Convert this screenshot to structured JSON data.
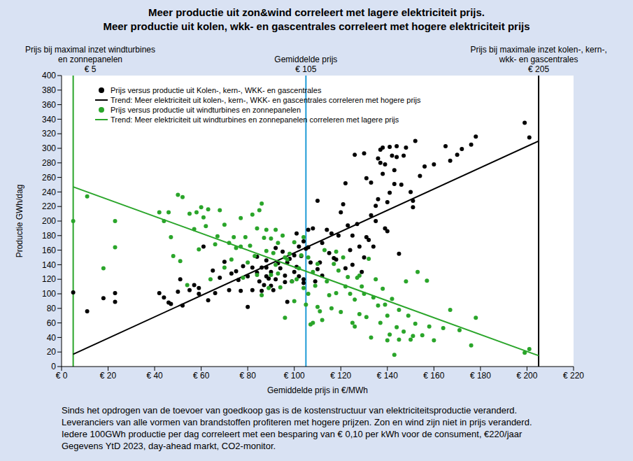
{
  "chart_data": {
    "type": "scatter",
    "title": "Meer productie uit zon&wind correleert met lagere elektriciteit prijs.\nMeer productie uit kolen, wkk- en gascentrales correleert met hogere elektriciteit prijs",
    "x_label": "Gemiddelde prijs  in €/MWh",
    "y_label": "Productie GWh/dag",
    "xlim": [
      0,
      220
    ],
    "xticks": [
      {
        "value": 0,
        "label": "€ 0"
      },
      {
        "value": 20,
        "label": "€ 20"
      },
      {
        "value": 40,
        "label": "€ 40"
      },
      {
        "value": 60,
        "label": "€ 60"
      },
      {
        "value": 80,
        "label": "€ 80"
      },
      {
        "value": 100,
        "label": "€ 100"
      },
      {
        "value": 120,
        "label": "€ 120"
      },
      {
        "value": 140,
        "label": "€ 140"
      },
      {
        "value": 160,
        "label": "€ 160"
      },
      {
        "value": 180,
        "label": "€ 180"
      },
      {
        "value": 200,
        "label": "€ 200"
      },
      {
        "value": 220,
        "label": "€ 220"
      }
    ],
    "ylim": [
      0,
      400
    ],
    "yticks": [
      0,
      20,
      40,
      60,
      80,
      100,
      120,
      140,
      160,
      180,
      200,
      220,
      240,
      260,
      280,
      300,
      320,
      340,
      360,
      380,
      400
    ],
    "grid": false,
    "legend": "upper left",
    "reference_lines": [
      {
        "x": 5,
        "color": "#2aa52a",
        "label": "Prijs bij maximal inzet windturbines\nen zonnepanelen",
        "value_label": "€ 5"
      },
      {
        "x": 105,
        "color": "#1f9ad6",
        "label": "Gemiddelde prijs",
        "value_label": "€ 105"
      },
      {
        "x": 205,
        "color": "#000000",
        "label": "Prijs bij maximale inzet kolen-, kern-,\nwkk- en gascentrales",
        "value_label": "€ 205"
      }
    ],
    "series": [
      {
        "name": "Prijs versus productie uit Kolen-, kern-, WKK- en gascentrales",
        "color": "#000000",
        "type": "scatter",
        "marker": "circle",
        "x": [
          5,
          11,
          18,
          23,
          23,
          42,
          44,
          46,
          47,
          50,
          51,
          52,
          55,
          57,
          59,
          59,
          61,
          63,
          65,
          66,
          68,
          70,
          72,
          73,
          75,
          76,
          77,
          78,
          80,
          80,
          82,
          82,
          84,
          84,
          85,
          86,
          86,
          87,
          88,
          88,
          88,
          89,
          90,
          90,
          91,
          92,
          92,
          93,
          94,
          95,
          96,
          96,
          97,
          97,
          98,
          99,
          100,
          100,
          101,
          101,
          102,
          102,
          103,
          104,
          104,
          104,
          105,
          106,
          106,
          107,
          108,
          109,
          110,
          110,
          111,
          112,
          112,
          114,
          115,
          116,
          117,
          118,
          119,
          120,
          121,
          122,
          122,
          123,
          124,
          125,
          125,
          126,
          127,
          128,
          129,
          130,
          130,
          131,
          131,
          132,
          133,
          133,
          134,
          135,
          135,
          136,
          136,
          137,
          137,
          138,
          138,
          139,
          139,
          140,
          140,
          141,
          141,
          142,
          143,
          143,
          144,
          144,
          145,
          146,
          147,
          148,
          150,
          151,
          151,
          152,
          154,
          156,
          160,
          165,
          167,
          170,
          172,
          176,
          178,
          199,
          201
        ],
        "values": [
          102,
          76,
          94,
          101,
          89,
          101,
          95,
          88,
          86,
          103,
          120,
          84,
          105,
          112,
          100,
          108,
          165,
          91,
          132,
          101,
          122,
          144,
          105,
          128,
          131,
          119,
          104,
          138,
          82,
          124,
          136,
          105,
          129,
          151,
          117,
          136,
          104,
          112,
          124,
          136,
          146,
          121,
          130,
          111,
          105,
          163,
          120,
          142,
          135,
          158,
          116,
          125,
          143,
          89,
          148,
          117,
          130,
          153,
          183,
          137,
          124,
          165,
          152,
          120,
          172,
          115,
          162,
          188,
          164,
          143,
          190,
          117,
          228,
          134,
          143,
          170,
          125,
          188,
          156,
          183,
          149,
          147,
          180,
          212,
          223,
          252,
          135,
          194,
          160,
          180,
          140,
          291,
          196,
          165,
          130,
          293,
          150,
          178,
          259,
          174,
          208,
          253,
          165,
          221,
          200,
          230,
          286,
          298,
          280,
          301,
          265,
          278,
          190,
          226,
          186,
          302,
          239,
          290,
          251,
          270,
          288,
          303,
          155,
          250,
          290,
          301,
          240,
          228,
          219,
          310,
          262,
          275,
          278,
          303,
          283,
          291,
          299,
          305,
          316,
          335,
          315
        ]
      },
      {
        "name": "Trend: Meer elektriciteit uit kolen-, kern-, WKK- en gascentrales correleren met hogere prijs",
        "color": "#000000",
        "type": "line",
        "line_style": "solid",
        "x": [
          5,
          205
        ],
        "values": [
          17,
          310
        ]
      },
      {
        "name": "Prijs versus productie uit windturbines en zonnepanelen",
        "color": "#2aa52a",
        "type": "scatter",
        "marker": "circle",
        "x": [
          5,
          11,
          18,
          23,
          23,
          42,
          44,
          46,
          47,
          48,
          50,
          51,
          52,
          54,
          55,
          57,
          58,
          59,
          60,
          61,
          62,
          63,
          64,
          66,
          67,
          68,
          70,
          70,
          72,
          73,
          74,
          75,
          77,
          77,
          78,
          79,
          80,
          81,
          82,
          83,
          84,
          84,
          85,
          86,
          86,
          87,
          88,
          88,
          89,
          90,
          90,
          91,
          92,
          92,
          93,
          93,
          94,
          95,
          96,
          96,
          97,
          98,
          99,
          100,
          100,
          101,
          102,
          103,
          104,
          104,
          105,
          106,
          106,
          107,
          108,
          108,
          109,
          110,
          110,
          111,
          112,
          113,
          114,
          115,
          116,
          117,
          118,
          118,
          119,
          120,
          121,
          122,
          123,
          124,
          125,
          126,
          126,
          127,
          128,
          128,
          129,
          130,
          131,
          132,
          133,
          134,
          135,
          136,
          137,
          138,
          139,
          140,
          140,
          141,
          142,
          143,
          144,
          145,
          145,
          147,
          148,
          149,
          150,
          151,
          152,
          153,
          155,
          157,
          158,
          160,
          164,
          167,
          171,
          176,
          178,
          199,
          201
        ],
        "values": [
          200,
          234,
          135,
          200,
          164,
          212,
          200,
          212,
          178,
          152,
          236,
          145,
          233,
          112,
          210,
          189,
          212,
          161,
          219,
          205,
          193,
          216,
          120,
          168,
          179,
          215,
          195,
          136,
          170,
          147,
          178,
          163,
          204,
          165,
          122,
          178,
          143,
          166,
          209,
          152,
          126,
          190,
          215,
          224,
          98,
          177,
          159,
          188,
          108,
          126,
          176,
          156,
          188,
          140,
          170,
          128,
          109,
          180,
          150,
          67,
          147,
          155,
          117,
          171,
          90,
          120,
          135,
          153,
          108,
          178,
          85,
          150,
          100,
          58,
          130,
          60,
          111,
          82,
          141,
          76,
          64,
          160,
          117,
          98,
          80,
          141,
          101,
          158,
          132,
          75,
          150,
          110,
          123,
          100,
          60,
          92,
          55,
          122,
          72,
          125,
          110,
          100,
          68,
          148,
          40,
          95,
          120,
          84,
          60,
          107,
          85,
          70,
          36,
          44,
          93,
          16,
          54,
          78,
          37,
          48,
          117,
          70,
          37,
          42,
          59,
          130,
          43,
          118,
          55,
          36,
          53,
          78,
          50,
          29,
          67,
          19,
          24
        ]
      },
      {
        "name": "Trend: Meer elektriciteit uit windturbines en zonnepanelen correleren met lagere prijs",
        "color": "#2aa52a",
        "type": "line",
        "line_style": "solid",
        "x": [
          5,
          205
        ],
        "values": [
          247,
          15
        ]
      }
    ],
    "footnote": "Sinds het opdrogen van de toevoer van goedkoop gas is de kostenstructuur van elektriciteitsproductie veranderd.\nLeveranciers van alle vormen van brandstoffen profiteren met hogere prijzen. Zon en wind zijn niet in prijs veranderd.\nIedere 100GWh productie per dag correleert met een besparing van € 0,10 per kWh voor de consument, €220/jaar\nGegevens YtD 2023, day-ahead markt, CO2-monitor."
  }
}
